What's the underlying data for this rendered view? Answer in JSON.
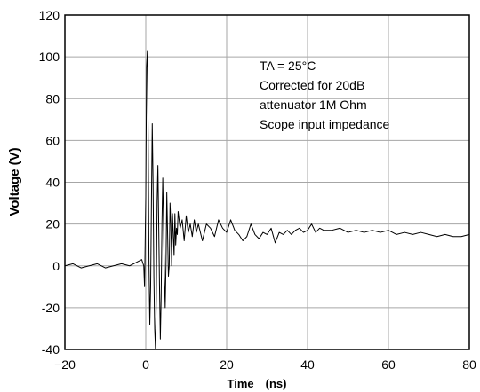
{
  "chart_data": {
    "type": "line",
    "title": "",
    "xlabel": "Time　(ns)",
    "ylabel": "Voltage (V)",
    "xlim": [
      -20,
      80
    ],
    "ylim": [
      -40,
      120
    ],
    "grid": true,
    "x_ticks": [
      "-20",
      "0",
      "20",
      "40",
      "60",
      "80"
    ],
    "y_ticks": [
      "120",
      "100",
      "80",
      "60",
      "40",
      "20",
      "0",
      "-20",
      "-40"
    ],
    "annotation_lines": [
      "TA = 25°C",
      "Corrected for 20dB",
      "attenuator  1M Ohm",
      "Scope input impedance"
    ],
    "series": [
      {
        "color": "#000000",
        "x": [
          -20,
          -18,
          -16,
          -14,
          -12,
          -10,
          -8,
          -6,
          -4,
          -2,
          -1,
          -0.5,
          -0.3,
          0,
          0.2,
          0.4,
          0.6,
          0.8,
          1.0,
          1.2,
          1.4,
          1.6,
          1.8,
          2.0,
          2.2,
          2.4,
          2.6,
          2.8,
          3.0,
          3.2,
          3.4,
          3.6,
          3.8,
          4.0,
          4.2,
          4.4,
          4.6,
          4.8,
          5.0,
          5.2,
          5.4,
          5.6,
          5.8,
          6.0,
          6.2,
          6.4,
          6.6,
          6.8,
          7.0,
          7.2,
          7.4,
          7.6,
          7.8,
          8.0,
          8.5,
          9.0,
          9.5,
          10.0,
          10.5,
          11.0,
          11.5,
          12.0,
          12.5,
          13.0,
          14.0,
          15.0,
          16.0,
          17.0,
          18.0,
          19.0,
          20.0,
          21.0,
          22.0,
          23.0,
          24.0,
          25.0,
          26.0,
          27.0,
          28.0,
          29.0,
          30.0,
          31.0,
          32.0,
          33.0,
          34.0,
          35.0,
          36.0,
          37.0,
          38.0,
          39.0,
          40.0,
          41.0,
          42.0,
          43.0,
          44.0,
          46.0,
          48.0,
          50.0,
          52.0,
          54.0,
          56.0,
          58.0,
          60.0,
          62.0,
          64.0,
          66.0,
          68.0,
          70.0,
          72.0,
          74.0,
          76.0,
          78.0,
          80.0
        ],
        "y": [
          0,
          1,
          -1,
          0,
          1,
          -1,
          0,
          1,
          0,
          2,
          3,
          0,
          -10,
          33,
          95,
          103,
          60,
          0,
          -28,
          -10,
          30,
          68,
          40,
          -5,
          -30,
          -40,
          -15,
          30,
          48,
          20,
          -10,
          -35,
          -15,
          20,
          42,
          20,
          -5,
          -20,
          0,
          35,
          15,
          -5,
          0,
          30,
          20,
          0,
          25,
          15,
          5,
          25,
          10,
          18,
          15,
          26,
          18,
          22,
          12,
          24,
          16,
          20,
          14,
          22,
          16,
          20,
          12,
          20,
          18,
          14,
          22,
          18,
          16,
          22,
          17,
          15,
          12,
          14,
          20,
          15,
          13,
          16,
          15,
          18,
          11,
          16,
          15,
          17,
          15,
          17,
          18,
          16,
          17,
          20,
          16,
          18,
          17,
          17,
          18,
          16,
          17,
          16,
          17,
          16,
          17,
          15,
          16,
          15,
          16,
          15,
          14,
          15,
          14,
          14,
          15
        ]
      }
    ]
  }
}
